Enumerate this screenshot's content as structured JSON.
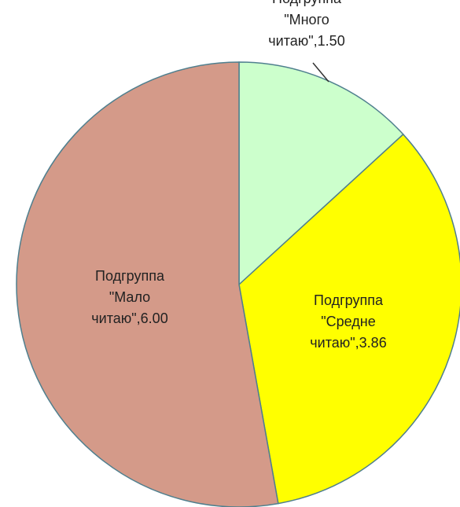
{
  "chart_data": {
    "type": "pie",
    "categories": [
      "Подгруппа \"Много читаю\"",
      "Подгруппа \"Средне читаю\"",
      "Подгруппа \"Мало читаю\""
    ],
    "values": [
      1.5,
      3.86,
      6
    ],
    "value_labels": [
      "1.50",
      "3.86",
      "6.00"
    ],
    "colors": [
      "#ccffcc",
      "#ffff00",
      "#d49a89"
    ]
  }
}
